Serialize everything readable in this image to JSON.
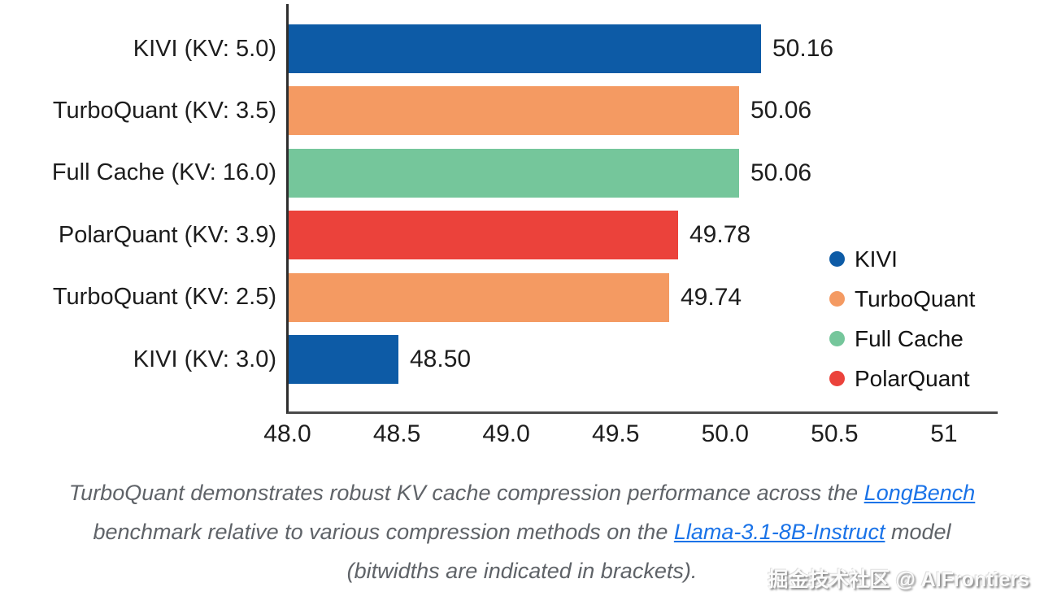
{
  "chart_data": {
    "type": "bar",
    "orientation": "horizontal",
    "title": "",
    "xlabel": "",
    "ylabel": "",
    "xlim": [
      48,
      51.24
    ],
    "grid": false,
    "legend_position": "right-middle",
    "rows": [
      {
        "label": "KIVI (KV: 5.0)",
        "value": 50.16,
        "value_label": "50.16",
        "series": "KIVI"
      },
      {
        "label": "TurboQuant (KV: 3.5)",
        "value": 50.06,
        "value_label": "50.06",
        "series": "TurboQuant"
      },
      {
        "label": "Full Cache (KV: 16.0)",
        "value": 50.06,
        "value_label": "50.06",
        "series": "Full Cache"
      },
      {
        "label": "PolarQuant (KV: 3.9)",
        "value": 49.78,
        "value_label": "49.78",
        "series": "PolarQuant"
      },
      {
        "label": "TurboQuant (KV: 2.5)",
        "value": 49.74,
        "value_label": "49.74",
        "series": "TurboQuant"
      },
      {
        "label": "KIVI (KV: 3.0)",
        "value": 48.5,
        "value_label": "48.50",
        "series": "KIVI"
      }
    ],
    "series_colors": {
      "KIVI": "#0D5BA6",
      "TurboQuant": "#F49A62",
      "Full Cache": "#75C69B",
      "PolarQuant": "#EB423B"
    },
    "legend": [
      {
        "name": "KIVI"
      },
      {
        "name": "TurboQuant"
      },
      {
        "name": "Full Cache"
      },
      {
        "name": "PolarQuant"
      }
    ],
    "xticks": [
      "48.0",
      "48.5",
      "49.0",
      "49.5",
      "50.0",
      "50.5",
      "51"
    ]
  },
  "caption": {
    "line1_pre": "TurboQuant demonstrates robust KV cache compression performance across the ",
    "line1_link": "LongBench",
    "line2_pre": "benchmark relative to various compression methods on the ",
    "line2_link": "Llama-3.1-8B-Instruct",
    "line2_post": " model",
    "line3": "(bitwidths are indicated in brackets)."
  },
  "watermark": {
    "text": "掘金技术社区 @ AIFrontiers"
  }
}
